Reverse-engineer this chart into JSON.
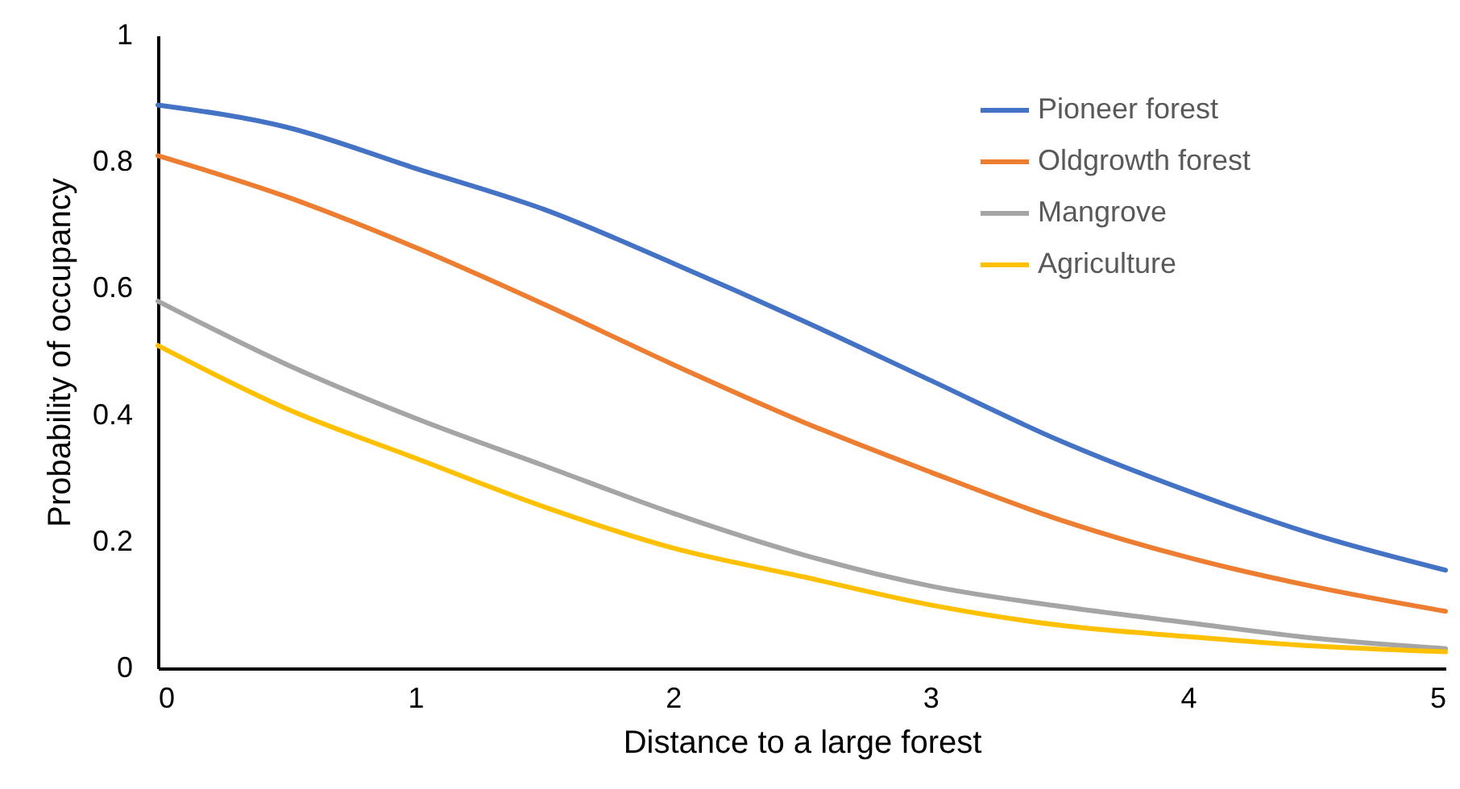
{
  "chart_data": {
    "type": "line",
    "xlabel": "Distance to a large forest",
    "ylabel": "Probability of occupancy",
    "x": [
      0,
      0.5,
      1,
      1.5,
      2,
      2.5,
      3,
      3.5,
      4,
      4.5,
      5
    ],
    "series": [
      {
        "name": "Pioneer forest",
        "color": "#4472c4",
        "values": [
          0.89,
          0.855,
          0.79,
          0.725,
          0.64,
          0.55,
          0.455,
          0.36,
          0.28,
          0.21,
          0.155
        ]
      },
      {
        "name": "Oldgrowth forest",
        "color": "#ed7d31",
        "values": [
          0.81,
          0.745,
          0.665,
          0.575,
          0.48,
          0.39,
          0.31,
          0.235,
          0.175,
          0.128,
          0.09
        ]
      },
      {
        "name": "Mangrove",
        "color": "#a5a5a5",
        "values": [
          0.58,
          0.48,
          0.395,
          0.32,
          0.245,
          0.18,
          0.13,
          0.098,
          0.072,
          0.047,
          0.031
        ]
      },
      {
        "name": "Agriculture",
        "color": "#ffc000",
        "values": [
          0.51,
          0.41,
          0.332,
          0.255,
          0.19,
          0.145,
          0.1,
          0.068,
          0.05,
          0.035,
          0.026
        ]
      }
    ],
    "xlim": [
      0,
      5
    ],
    "xticks": [
      0,
      1,
      2,
      3,
      4,
      5
    ],
    "ylim": [
      0,
      1
    ],
    "yticks": [
      0,
      0.2,
      0.4,
      0.6,
      0.8,
      1
    ],
    "grid": false,
    "legend": "top right",
    "marker": "none",
    "line_style": "solid"
  }
}
